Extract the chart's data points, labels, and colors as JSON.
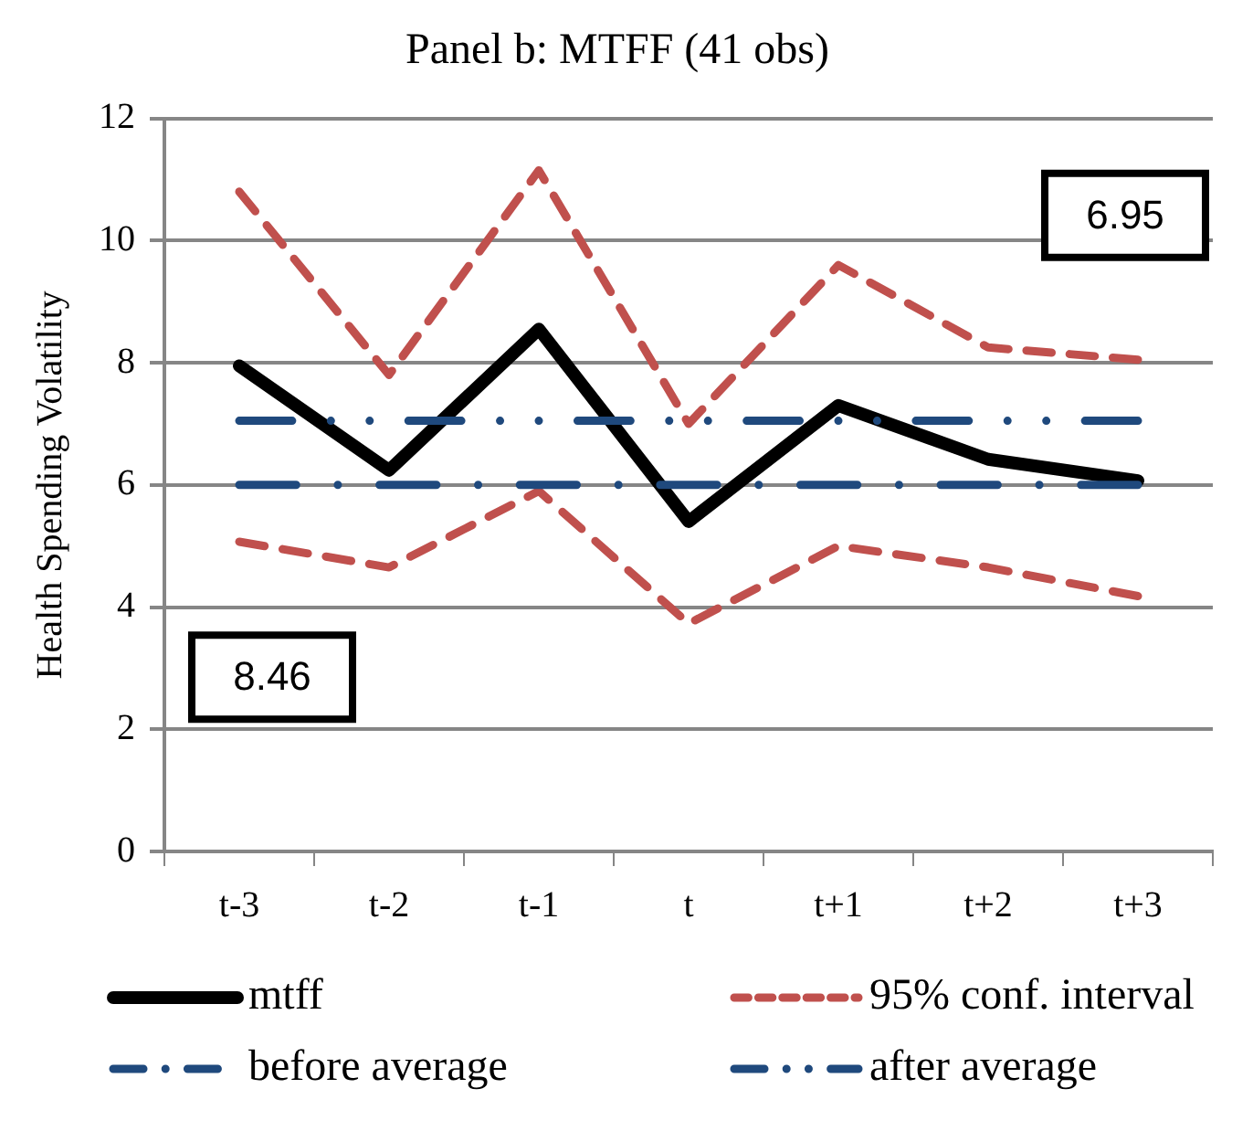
{
  "chart_data": {
    "type": "line",
    "title": "Panel b: MTFF (41 obs)",
    "ylabel": "Health Spending Volatility",
    "categories": [
      "t-3",
      "t-2",
      "t-1",
      "t",
      "t+1",
      "t+2",
      "t+3"
    ],
    "series": [
      {
        "name": "mtff",
        "color": "#000000",
        "values": [
          7.95,
          6.24,
          8.55,
          5.4,
          7.3,
          6.42,
          6.07
        ]
      },
      {
        "name": "95% conf. interval",
        "color": "#c0504d",
        "line_style": "dashed",
        "values": [
          10.8,
          7.8,
          11.15,
          7.0,
          9.6,
          8.25,
          8.05
        ]
      },
      {
        "color": "#c0504d",
        "line_style": "dashed",
        "values": [
          5.07,
          4.65,
          5.9,
          3.73,
          5.0,
          4.65,
          4.18
        ]
      },
      {
        "name": "before average",
        "color": "#1f497d",
        "line_style": "dashed",
        "values": [
          6.0,
          6.0,
          6.0,
          6.0,
          6.0,
          6.0,
          6.0
        ]
      },
      {
        "name": "after average",
        "color": "#1f497d",
        "line_style": "dashed",
        "values": [
          7.05,
          7.05,
          7.05,
          7.05,
          7.05,
          7.05,
          7.05
        ]
      }
    ],
    "ylim": [
      0,
      12
    ],
    "yticks": [
      0,
      2,
      4,
      6,
      8,
      10,
      12
    ],
    "grid": "y",
    "legend": "bottom",
    "marker": "none",
    "annotations": [
      "8.46",
      "6.95"
    ]
  }
}
